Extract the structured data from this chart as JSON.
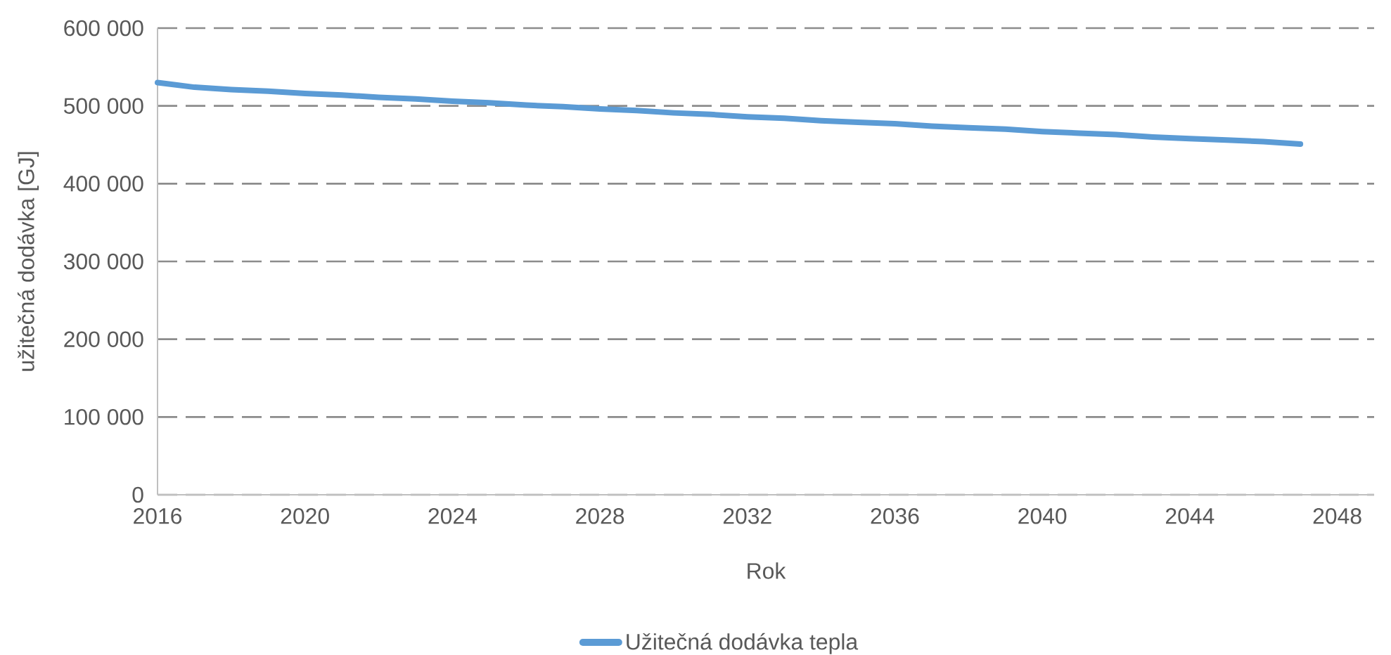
{
  "chart_data": {
    "type": "line",
    "xlabel": "Rok",
    "ylabel": "užitečná dodávka [GJ]",
    "x": [
      2016,
      2017,
      2018,
      2019,
      2020,
      2021,
      2022,
      2023,
      2024,
      2025,
      2026,
      2027,
      2028,
      2029,
      2030,
      2031,
      2032,
      2033,
      2034,
      2035,
      2036,
      2037,
      2038,
      2039,
      2040,
      2041,
      2042,
      2043,
      2044,
      2045,
      2046,
      2047
    ],
    "series": [
      {
        "name": "Užitečná dodávka tepla",
        "color": "#5b9bd5",
        "values": [
          530000,
          524000,
          521000,
          519000,
          516000,
          514000,
          511000,
          509000,
          506000,
          504000,
          501000,
          499000,
          496000,
          494000,
          491000,
          489000,
          486000,
          484000,
          481000,
          479000,
          477000,
          474000,
          472000,
          470000,
          467000,
          465000,
          463000,
          460000,
          458000,
          456000,
          454000,
          451000
        ]
      }
    ],
    "xlim": [
      2016,
      2049
    ],
    "xticks": [
      2016,
      2020,
      2024,
      2028,
      2032,
      2036,
      2040,
      2044,
      2048
    ],
    "ylim": [
      0,
      600000
    ],
    "yticks": [
      {
        "value": 0,
        "label": "0"
      },
      {
        "value": 100000,
        "label": "100 000"
      },
      {
        "value": 200000,
        "label": "200 000"
      },
      {
        "value": 300000,
        "label": "300 000"
      },
      {
        "value": 400000,
        "label": "400 000"
      },
      {
        "value": 500000,
        "label": "500 000"
      },
      {
        "value": 600000,
        "label": "600 000"
      }
    ],
    "grid": "y",
    "legend": "bottom",
    "marker": "none",
    "line_style": "solid"
  }
}
